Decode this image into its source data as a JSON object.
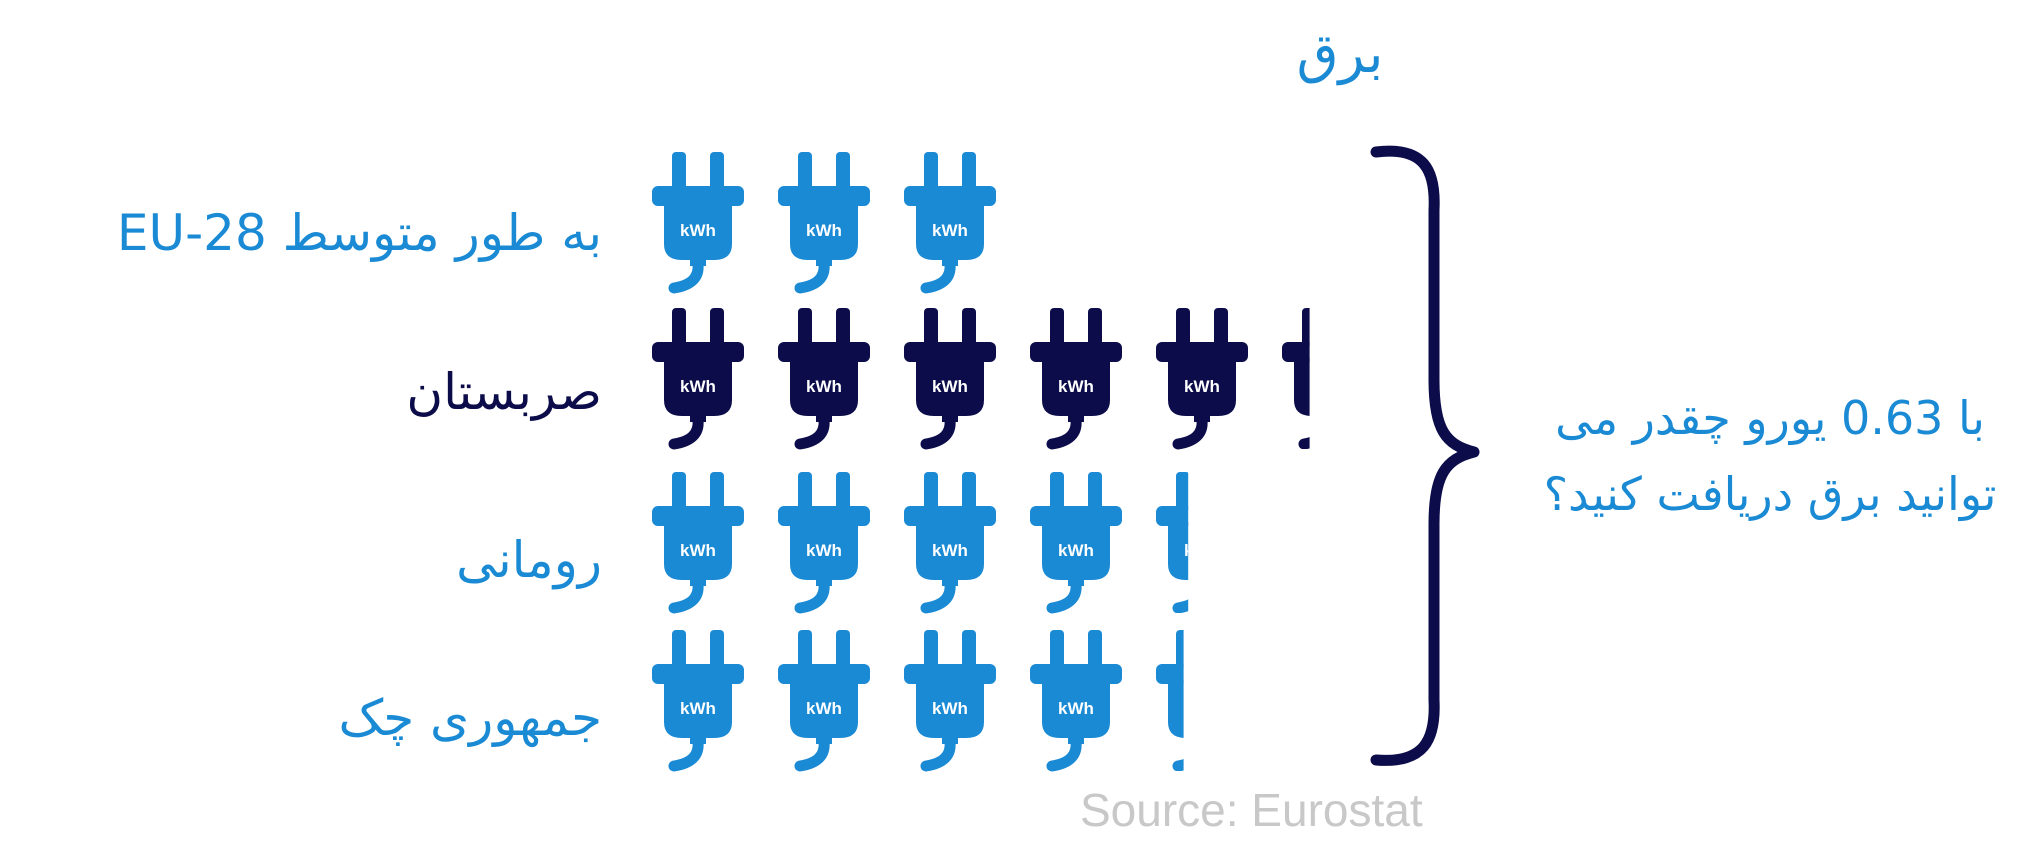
{
  "chart_data": {
    "type": "pictograph",
    "title": "برق",
    "unit_label": "kWh",
    "rows": [
      {
        "label": "به طور متوسط EU-28",
        "value": 3.0,
        "color": "#1a8ad4"
      },
      {
        "label": "صربستان",
        "value": 5.3,
        "color": "#0c0c4a"
      },
      {
        "label": "رومانی",
        "value": 4.35,
        "color": "#1a8ad4"
      },
      {
        "label": "جمهوری چک",
        "value": 4.3,
        "color": "#1a8ad4"
      }
    ],
    "question_lines": [
      "با 0.63 یورو چقدر می",
      "توانید برق دریافت کنید؟"
    ],
    "source": "Source: Eurostat"
  },
  "colors": {
    "accent": "#1a8ad4",
    "dark": "#0c0c4a",
    "source": "#c8c8c8"
  }
}
